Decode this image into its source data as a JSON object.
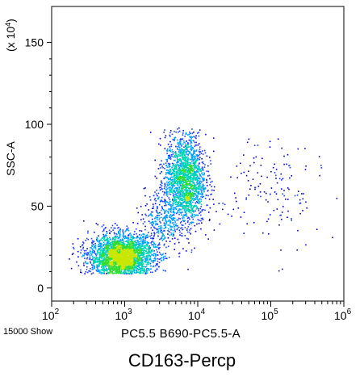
{
  "chart_data": {
    "type": "scatter",
    "title": "CD163-Percp",
    "xlabel": "PC5.5 B690-PC5.5-A",
    "ylabel": "SSC-A",
    "y_multiplier_label": "(x 10",
    "y_multiplier_exp": "4",
    "x_scale": "log",
    "xlim": [
      100,
      1000000
    ],
    "x_ticks": [
      {
        "value": 100,
        "base": "10",
        "exp": "2"
      },
      {
        "value": 1000,
        "base": "10",
        "exp": "3"
      },
      {
        "value": 10000,
        "base": "10",
        "exp": "4"
      },
      {
        "value": 100000,
        "base": "10",
        "exp": "5"
      },
      {
        "value": 1000000,
        "base": "10",
        "exp": "6"
      }
    ],
    "ylim": [
      -8,
      172
    ],
    "y_ticks": [
      {
        "value": 0,
        "label": "0"
      },
      {
        "value": 50,
        "label": "50"
      },
      {
        "value": 100,
        "label": "100"
      },
      {
        "value": 150,
        "label": "150"
      }
    ],
    "grid": false,
    "events_shown": "15000 Show",
    "colormap": [
      "#0000c8",
      "#1e3cff",
      "#00a0ff",
      "#00d2b4",
      "#32dc32",
      "#c8e600"
    ],
    "populations": [
      {
        "center_log10_x": 2.95,
        "center_y": 19,
        "sd_log10_x": 0.22,
        "sd_y": 7,
        "weight": 0.55
      },
      {
        "center_log10_x": 3.82,
        "center_y": 66,
        "sd_log10_x": 0.14,
        "sd_y": 14,
        "weight": 0.36
      },
      {
        "center_log10_x": 3.5,
        "center_y": 42,
        "sd_log10_x": 0.14,
        "sd_y": 10,
        "weight": 0.06
      },
      {
        "center_log10_x": 5.0,
        "center_y": 60,
        "sd_log10_x": 0.35,
        "sd_y": 20,
        "weight": 0.03
      }
    ]
  }
}
